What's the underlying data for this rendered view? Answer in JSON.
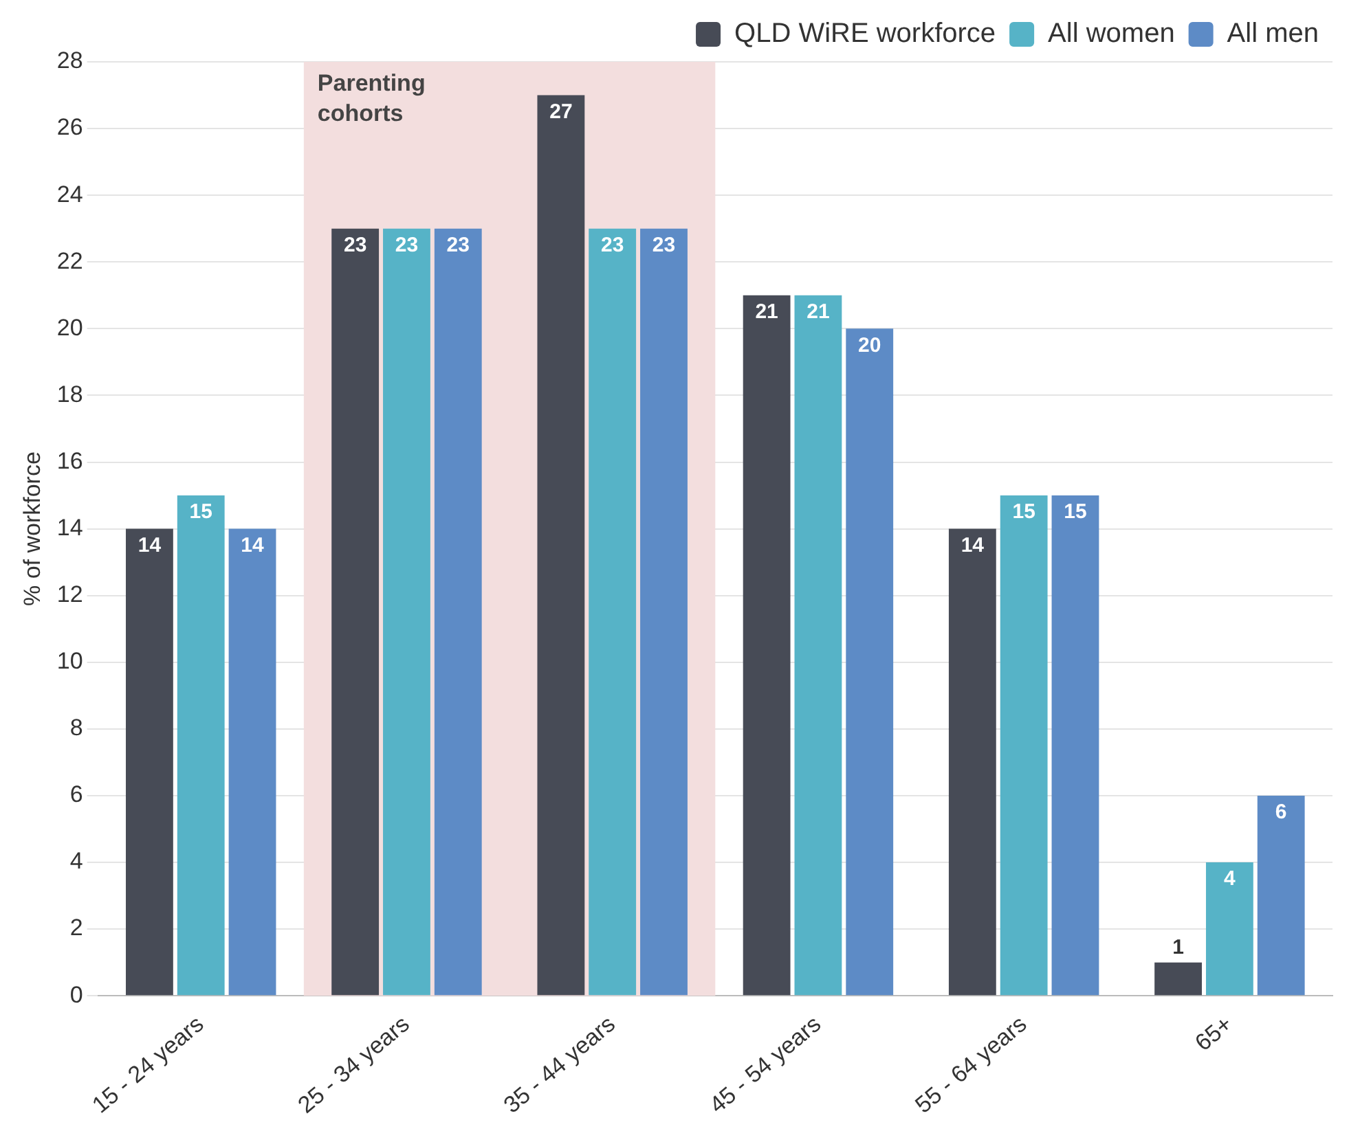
{
  "chart_data": {
    "type": "bar",
    "ylabel": "% of workforce",
    "categories": [
      "15 - 24 years",
      "25 - 34 years",
      "35 - 44 years",
      "45 - 54 years",
      "55 - 64 years",
      "65+"
    ],
    "series": [
      {
        "name": "QLD WiRE workforce",
        "color": "#474b56",
        "values": [
          14,
          23,
          27,
          21,
          14,
          1
        ]
      },
      {
        "name": "All women",
        "color": "#56b3c7",
        "values": [
          15,
          23,
          23,
          21,
          15,
          4
        ]
      },
      {
        "name": "All men",
        "color": "#5d8bc6",
        "values": [
          14,
          23,
          23,
          20,
          15,
          6
        ]
      }
    ],
    "ylim": [
      0,
      28
    ],
    "yticks": [
      0,
      2,
      4,
      6,
      8,
      10,
      12,
      14,
      16,
      18,
      20,
      22,
      24,
      26,
      28
    ],
    "bands": [
      {
        "axis": "x",
        "from": "25 - 34 years",
        "to": "35 - 44 years",
        "label": "Parenting cohorts",
        "color": "#f3dede"
      }
    ],
    "grid": "y",
    "legend": "top right",
    "data_labels": true
  }
}
